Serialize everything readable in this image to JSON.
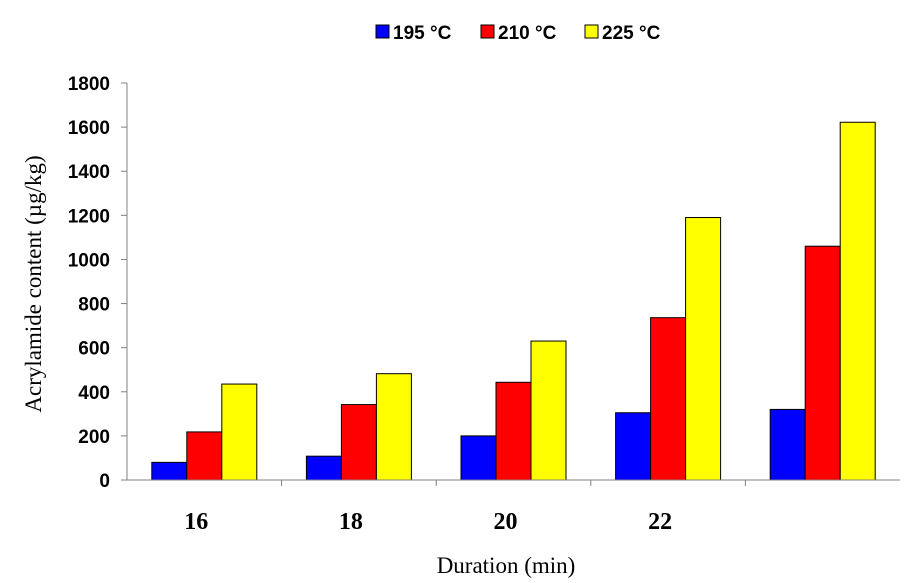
{
  "chart_data": {
    "type": "bar",
    "categories": [
      "16",
      "18",
      "20",
      "22",
      ""
    ],
    "series": [
      {
        "name": "195 °C",
        "color": "#0000FF",
        "values": [
          80,
          108,
          200,
          305,
          320
        ]
      },
      {
        "name": "210 °C",
        "color": "#FF0000",
        "values": [
          218,
          342,
          443,
          736,
          1060
        ]
      },
      {
        "name": "225 °C",
        "color": "#FFFF00",
        "values": [
          435,
          482,
          630,
          1190,
          1622
        ]
      }
    ],
    "title": "",
    "xlabel": "Duration (min)",
    "ylabel": "Acrylamide content  (µg/kg)",
    "ylim": [
      0,
      1800
    ],
    "yticks": [
      0,
      200,
      400,
      600,
      800,
      1000,
      1200,
      1400,
      1600,
      1800
    ],
    "legend_position": "top-center",
    "grid": false
  }
}
